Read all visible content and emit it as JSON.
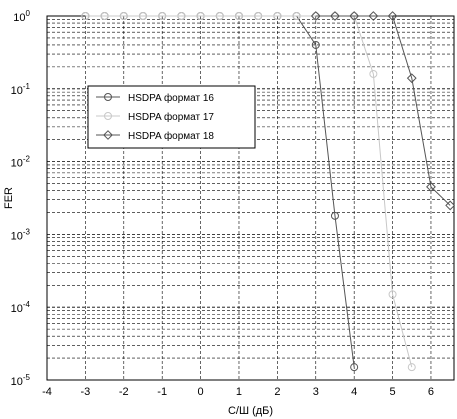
{
  "chart_data": {
    "type": "line",
    "title": "",
    "xlabel": "С/Ш (дБ)",
    "ylabel": "FER",
    "x_ticks": [
      "-4",
      "-3",
      "-2",
      "-1",
      "0",
      "1",
      "2",
      "3",
      "4",
      "5",
      "6"
    ],
    "y_ticks": [
      {
        "base": "10",
        "exp": "0"
      },
      {
        "base": "10",
        "exp": "-1"
      },
      {
        "base": "10",
        "exp": "-2"
      },
      {
        "base": "10",
        "exp": "-3"
      },
      {
        "base": "10",
        "exp": "-4"
      },
      {
        "base": "10",
        "exp": "-5"
      }
    ],
    "xlim": [
      -4,
      6.6
    ],
    "ylim": [
      1e-05,
      1
    ],
    "y_scale": "log",
    "grid": true,
    "legend_position": "upper-left",
    "series": [
      {
        "name": "HSDPA формат 16",
        "marker": "circle",
        "color": "#555555",
        "x": [
          -3,
          -2.5,
          -2,
          -1.5,
          -1,
          -0.5,
          0,
          0.5,
          1,
          1.5,
          2,
          2.5,
          3,
          3.5,
          4
        ],
        "y": [
          1,
          1,
          1,
          1,
          1,
          1,
          1,
          1,
          1,
          1,
          1,
          1,
          0.4,
          0.0018,
          1.5e-05
        ]
      },
      {
        "name": "HSDPA формат 17",
        "marker": "circle",
        "color": "#c8c8c8",
        "x": [
          -3,
          -2.5,
          -2,
          -1.5,
          -1,
          -0.5,
          0,
          0.5,
          1,
          1.5,
          2,
          2.5,
          3,
          3.5,
          4,
          4.5,
          5,
          5.5
        ],
        "y": [
          1,
          1,
          1,
          1,
          1,
          1,
          1,
          1,
          1,
          1,
          1,
          1,
          1,
          1,
          1,
          0.16,
          0.00015,
          1.5e-05
        ]
      },
      {
        "name": "HSDPA формат 18",
        "marker": "diamond",
        "color": "#555555",
        "x": [
          3,
          3.5,
          4,
          4.5,
          5,
          5.5,
          6,
          6.5
        ],
        "y": [
          1,
          1,
          1,
          1,
          1,
          0.14,
          0.0045,
          0.0025
        ]
      }
    ]
  }
}
